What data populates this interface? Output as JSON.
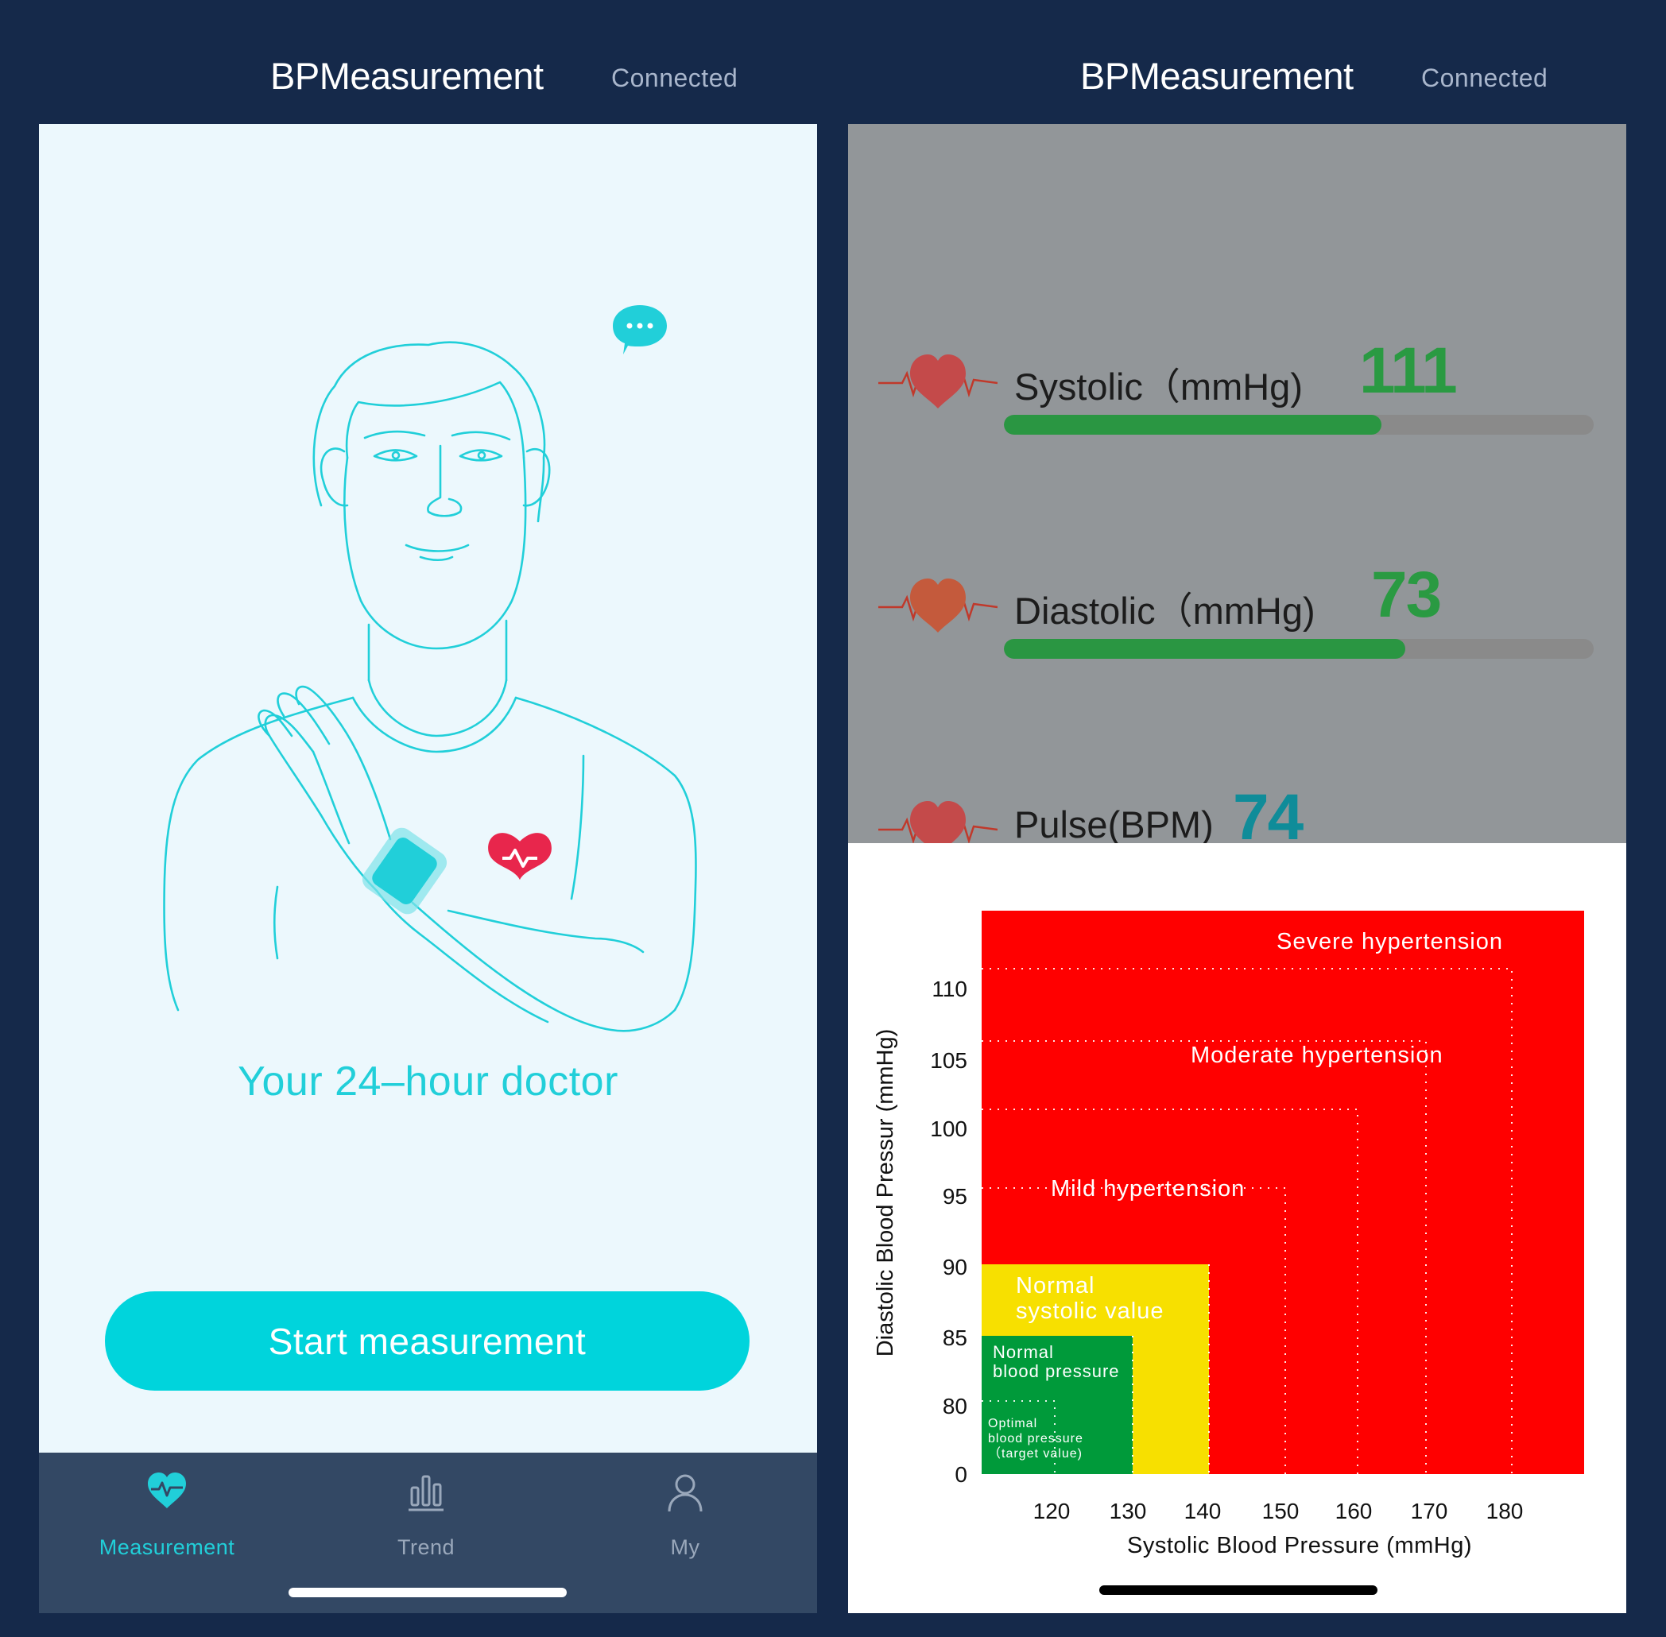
{
  "left": {
    "header": {
      "title": "BPMeasurement",
      "status": "Connected"
    },
    "tagline": "Your 24–hour doctor",
    "start_button": "Start measurement",
    "tabs": [
      {
        "label": "Measurement",
        "icon": "heart-pulse-icon",
        "active": true
      },
      {
        "label": "Trend",
        "icon": "bar-chart-icon",
        "active": false
      },
      {
        "label": "My",
        "icon": "user-icon",
        "active": false
      }
    ]
  },
  "right": {
    "header": {
      "title": "BPMeasurement",
      "status": "Connected"
    },
    "readings": [
      {
        "label": "Systolic（mmHg)",
        "value": "111",
        "level": 0.64
      },
      {
        "label": "Diastolic（mmHg)",
        "value": "73",
        "level": 0.68
      },
      {
        "label": "Pulse(BPM)",
        "value": "74"
      }
    ]
  },
  "colors": {
    "accent": "#00d4dc",
    "value_green": "#2a9a42",
    "pulse_teal": "#0f8c99",
    "heart_red": "#e8264c",
    "zone_red": "#ff0000",
    "zone_yellow": "#f7e000",
    "zone_green": "#009a3a"
  },
  "chart_data": {
    "type": "area",
    "xlabel": "Systolic Blood Pressure (mmHg)",
    "ylabel": "Diastolic Blood Pressur (mmHg)",
    "x_ticks": [
      "120",
      "130",
      "140",
      "150",
      "160",
      "170",
      "180"
    ],
    "y_ticks": [
      "0",
      "80",
      "85",
      "90",
      "95",
      "100",
      "105",
      "110"
    ],
    "zones": [
      {
        "name": "Severe hypertension",
        "systolic_max": 180,
        "diastolic_max": 110
      },
      {
        "name": "Moderate hypertension",
        "systolic_max": 170,
        "diastolic_max": 105
      },
      {
        "name": "Mild hypertension",
        "systolic_max": 150,
        "diastolic_max": 95
      },
      {
        "name": "Normal systolic value",
        "systolic_max": 140,
        "diastolic_max": 90
      },
      {
        "name": "Normal blood pressure",
        "systolic_max": 130,
        "diastolic_max": 85
      },
      {
        "name": "Optimal blood pressure（target value)",
        "systolic_max": 120,
        "diastolic_max": 80
      }
    ],
    "labels": {
      "severe": "Severe hypertension",
      "moderate": "Moderate hypertension",
      "mild": "Mild hypertension",
      "normal_systolic_1": "Normal",
      "normal_systolic_2": "systolic value",
      "normal_bp_1": "Normal",
      "normal_bp_2": "blood pressure",
      "optimal_1": "Optimal",
      "optimal_2": "blood pressure",
      "optimal_3": "（target value)"
    }
  }
}
